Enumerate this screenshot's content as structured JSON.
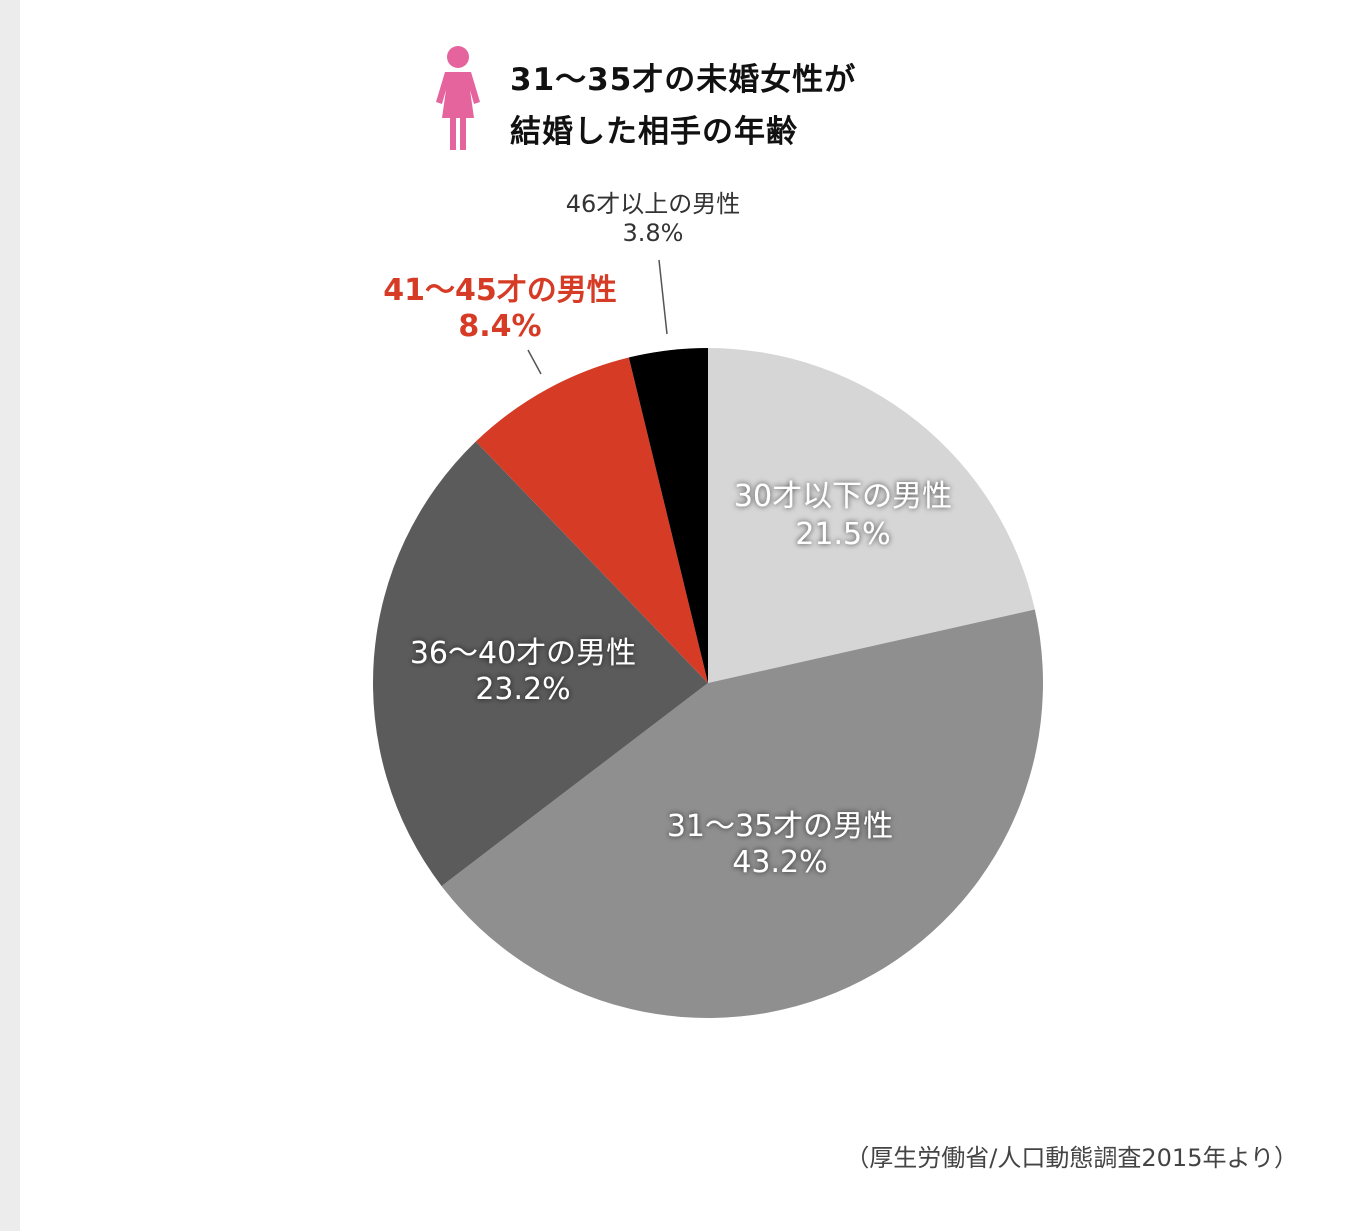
{
  "title": {
    "line1": "31〜35才の未婚女性が",
    "line2": "結婚した相手の年齢",
    "icon": "woman-icon",
    "icon_color": "#e5649e"
  },
  "chart_data": {
    "type": "pie",
    "start": "12 o'clock",
    "direction": "clockwise",
    "slices": [
      {
        "label": "30才以下の男性",
        "value": 21.5,
        "display": "21.5%",
        "color": "#d6d6d6"
      },
      {
        "label": "31〜35才の男性",
        "value": 43.2,
        "display": "43.2%",
        "color": "#8f8f8f"
      },
      {
        "label": "36〜40才の男性",
        "value": 23.2,
        "display": "23.2%",
        "color": "#5b5b5b"
      },
      {
        "label": "41〜45才の男性",
        "value": 8.4,
        "display": "8.4%",
        "color": "#d63b26"
      },
      {
        "label": "46才以上の男性",
        "value": 3.8,
        "display": "3.8%",
        "color": "#000000"
      }
    ]
  },
  "source": "（厚生労働省/人口動態調査2015年より）"
}
